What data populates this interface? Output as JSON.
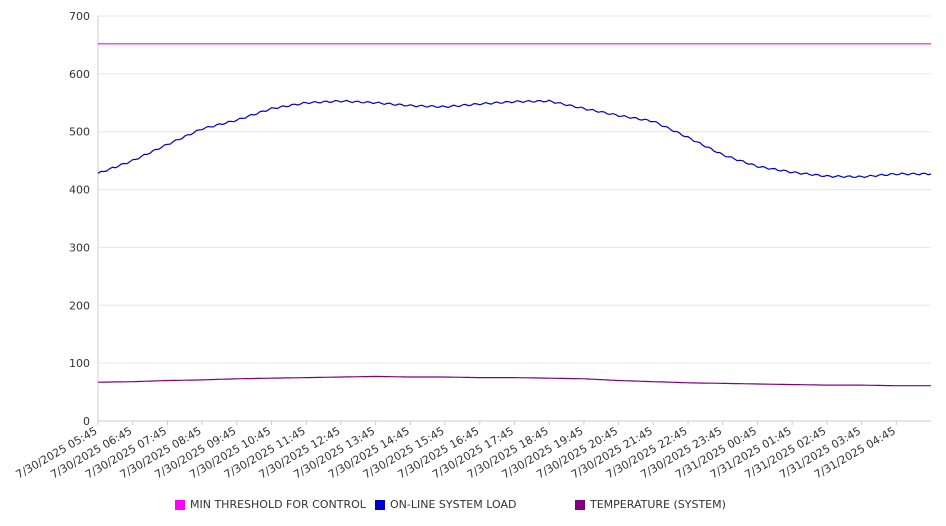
{
  "colors": {
    "threshold": "#ff00ff",
    "load": "#0000cc",
    "temperature": "#800080"
  },
  "chart_data": {
    "type": "line",
    "title": "",
    "xlabel": "",
    "ylabel": "",
    "ylim": [
      0,
      700
    ],
    "y_ticks": [
      "0",
      "100",
      "200",
      "300",
      "400",
      "500",
      "600",
      "700"
    ],
    "grid": true,
    "legend_position": "bottom",
    "categories": [
      "7/30/2025 05:45",
      "7/30/2025 06:45",
      "7/30/2025 07:45",
      "7/30/2025 08:45",
      "7/30/2025 09:45",
      "7/30/2025 10:45",
      "7/30/2025 11:45",
      "7/30/2025 12:45",
      "7/30/2025 13:45",
      "7/30/2025 14:45",
      "7/30/2025 15:45",
      "7/30/2025 16:45",
      "7/30/2025 17:45",
      "7/30/2025 18:45",
      "7/30/2025 19:45",
      "7/30/2025 20:45",
      "7/30/2025 21:45",
      "7/30/2025 22:45",
      "7/30/2025 23:45",
      "7/31/2025 00:45",
      "7/31/2025 01:45",
      "7/31/2025 02:45",
      "7/31/2025 03:45",
      "7/31/2025 04:45"
    ],
    "series": [
      {
        "name": "MIN THRESHOLD FOR CONTROL",
        "color_key": "threshold",
        "values": [
          652,
          652,
          652,
          652,
          652,
          652,
          652,
          652,
          652,
          652,
          652,
          652,
          652,
          652,
          652,
          652,
          652,
          652,
          652,
          652,
          652,
          652,
          652,
          652
        ]
      },
      {
        "name": "ON-LINE SYSTEM LOAD",
        "color_key": "load",
        "values": [
          428,
          450,
          478,
          505,
          520,
          540,
          550,
          553,
          550,
          545,
          543,
          548,
          552,
          553,
          540,
          528,
          518,
          490,
          460,
          440,
          430,
          423,
          422,
          427
        ]
      },
      {
        "name": "TEMPERATURE (SYSTEM)",
        "color_key": "temperature",
        "values": [
          67,
          68,
          70,
          71,
          73,
          74,
          75,
          76,
          77,
          76,
          76,
          75,
          75,
          74,
          73,
          70,
          68,
          66,
          65,
          64,
          63,
          62,
          62,
          61
        ]
      }
    ]
  }
}
